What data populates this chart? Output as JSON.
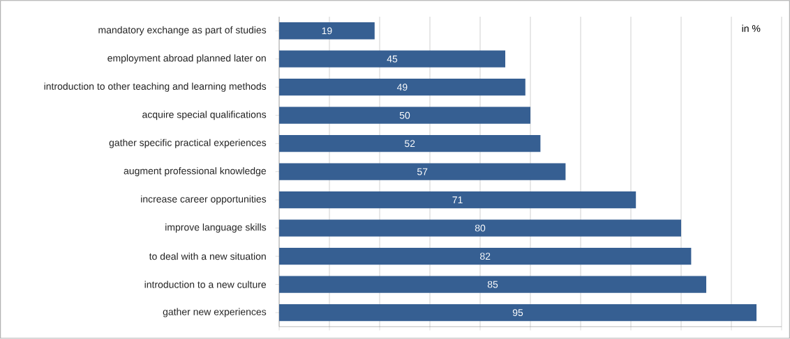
{
  "chart_data": {
    "type": "bar",
    "orientation": "horizontal",
    "categories": [
      "mandatory exchange as part of studies",
      "employment abroad planned later on",
      "introduction to other teaching and learning methods",
      "acquire special qualifications",
      "gather specific practical experiences",
      "augment professional knowledge",
      "increase career opportunities",
      "improve language skills",
      "to deal with a new situation",
      "introduction to a new culture",
      "gather new experiences"
    ],
    "values": [
      19,
      45,
      49,
      50,
      52,
      57,
      71,
      80,
      82,
      85,
      95
    ],
    "color": "#365f92",
    "xlim": [
      0,
      100
    ],
    "xticks": [
      {
        "value": 0,
        "label": null
      },
      {
        "value": 10,
        "label": null
      },
      {
        "value": 20,
        "label": null
      },
      {
        "value": 30,
        "label": null
      },
      {
        "value": 40,
        "label": null
      },
      {
        "value": 50,
        "label": null
      },
      {
        "value": 60,
        "label": null
      },
      {
        "value": 70,
        "label": null
      },
      {
        "value": 80,
        "label": null
      },
      {
        "value": 90,
        "label": null
      },
      {
        "value": 100,
        "label": null
      }
    ],
    "tick_labels": "y",
    "grid": "x",
    "data_labels": true,
    "annotations": [
      "in %"
    ]
  }
}
